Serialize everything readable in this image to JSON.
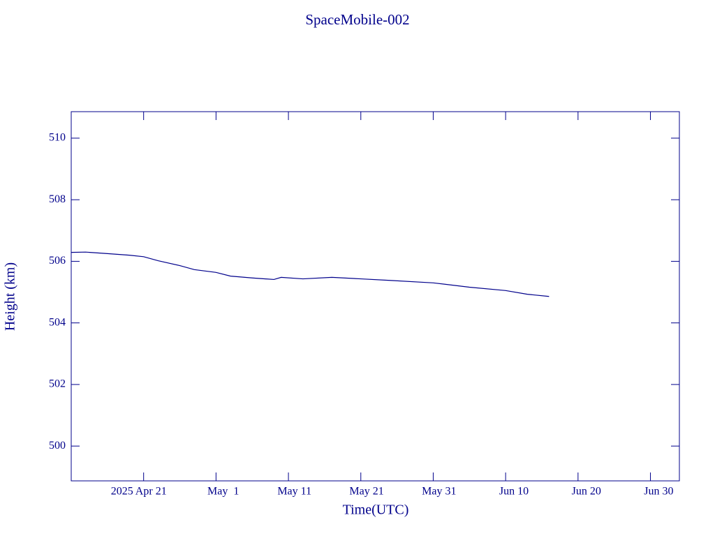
{
  "chart_data": {
    "type": "line",
    "title": "SpaceMobile-002",
    "x_label": "Time(UTC)",
    "y_label": "Height (km)",
    "x": [
      "2025-04-11",
      "2025-04-13",
      "2025-04-16",
      "2025-04-19",
      "2025-04-21",
      "2025-04-23",
      "2025-04-26",
      "2025-04-28",
      "2025-05-01",
      "2025-05-03",
      "2025-05-06",
      "2025-05-09",
      "2025-05-10",
      "2025-05-13",
      "2025-05-17",
      "2025-05-21",
      "2025-05-25",
      "2025-05-31",
      "2025-06-05",
      "2025-06-10",
      "2025-06-13",
      "2025-06-16"
    ],
    "series": [
      {
        "name": "SpaceMobile-002",
        "color": "#00008b",
        "values": [
          506.29,
          506.3,
          506.25,
          506.2,
          506.15,
          506.02,
          505.86,
          505.73,
          505.64,
          505.52,
          505.46,
          505.41,
          505.48,
          505.43,
          505.48,
          505.43,
          505.38,
          505.3,
          505.16,
          505.05,
          504.93,
          504.86
        ]
      }
    ],
    "xlim": [
      "2025-04-11",
      "2025-07-04"
    ],
    "xticks": [
      {
        "value": "2025-04-21",
        "label": "2025 Apr 21"
      },
      {
        "value": "2025-05-01",
        "label": "May  1"
      },
      {
        "value": "2025-05-11",
        "label": "May 11"
      },
      {
        "value": "2025-05-21",
        "label": "May 21"
      },
      {
        "value": "2025-05-31",
        "label": "May 31"
      },
      {
        "value": "2025-06-10",
        "label": "Jun 10"
      },
      {
        "value": "2025-06-20",
        "label": "Jun 20"
      },
      {
        "value": "2025-06-30",
        "label": "Jun 30"
      }
    ],
    "ylim": [
      498.87,
      510.86
    ],
    "yticks": [
      500,
      502,
      504,
      506,
      508,
      510
    ],
    "frame_color": "#00008b"
  }
}
